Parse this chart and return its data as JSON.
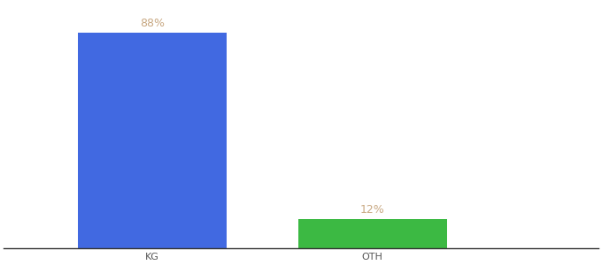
{
  "categories": [
    "KG",
    "OTH"
  ],
  "values": [
    88,
    12
  ],
  "bar_colors": [
    "#4169e1",
    "#3cb943"
  ],
  "label_texts": [
    "88%",
    "12%"
  ],
  "label_color": "#c8a882",
  "ylim": [
    0,
    100
  ],
  "background_color": "#ffffff",
  "bar_width": 0.25,
  "label_fontsize": 9,
  "tick_fontsize": 8,
  "x_positions": [
    0.25,
    0.62
  ],
  "xlim": [
    0.0,
    1.0
  ]
}
